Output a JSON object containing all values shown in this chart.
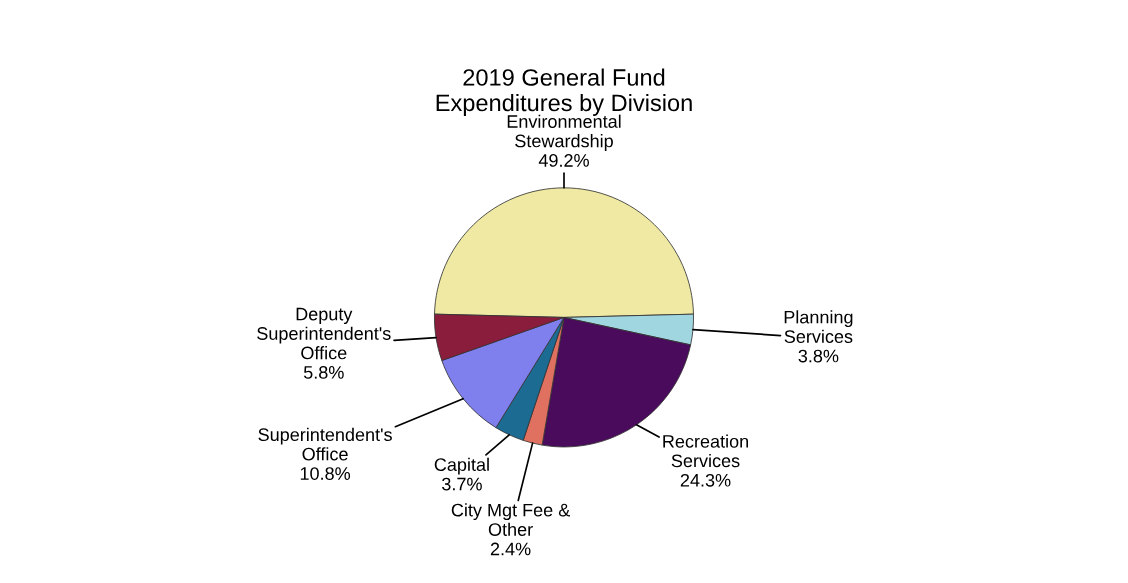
{
  "chart_data": {
    "type": "pie",
    "title": "2019 General Fund\nExpenditures by Division",
    "categories": [
      "Environmental\nStewardship",
      "Planning\nServices",
      "Recreation\nServices",
      "City Mgt Fee &\nOther",
      "Capital",
      "Superintendent's\nOffice",
      "Deputy\nSuperintendent's\nOffice"
    ],
    "values": [
      49.2,
      3.8,
      24.3,
      2.4,
      3.7,
      10.8,
      5.8
    ],
    "value_labels": [
      "49.2%",
      "3.8%",
      "24.3%",
      "2.4%",
      "3.7%",
      "10.8%",
      "5.8%"
    ],
    "colors": [
      "#efe9a3",
      "#9fd6df",
      "#4a0b5c",
      "#e0705f",
      "#1b6b93",
      "#7f7fee",
      "#8a1c3c"
    ],
    "legend": false
  }
}
